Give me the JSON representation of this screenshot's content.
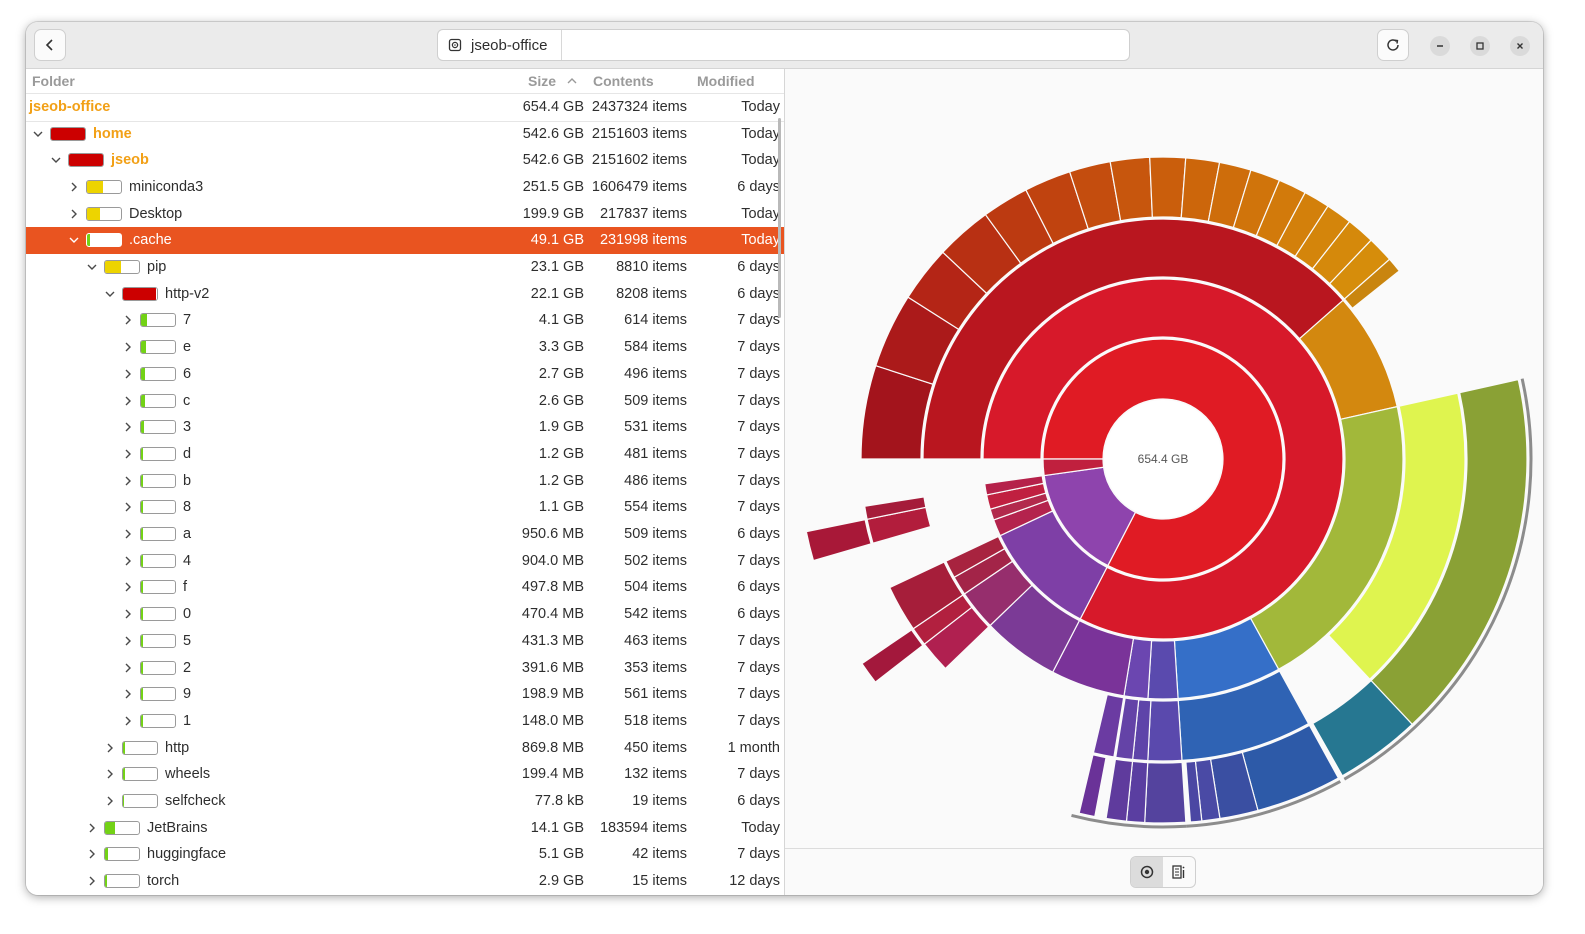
{
  "window": {
    "location_label": "jseob-office",
    "icons": {
      "back": "chevron-left-icon",
      "reload": "reload-icon",
      "minimize": "minimize-icon",
      "maximize": "maximize-icon",
      "close": "close-icon",
      "drive": "drive-icon"
    }
  },
  "columns": {
    "folder": "Folder",
    "size": "Size",
    "contents": "Contents",
    "modified": "Modified"
  },
  "root": {
    "name": "jseob-office",
    "size": "654.4 GB",
    "items": "2437324 items",
    "modified": "Today"
  },
  "rows": [
    {
      "name": "home",
      "size": "542.6 GB",
      "items": "2151603 items",
      "modified": "Today",
      "depth": 0,
      "expanded": true,
      "fill": 1.0,
      "color": "#cc0000",
      "highlight": true
    },
    {
      "name": "jseob",
      "size": "542.6 GB",
      "items": "2151602 items",
      "modified": "Today",
      "depth": 1,
      "expanded": true,
      "fill": 1.0,
      "color": "#cc0000",
      "highlight": true
    },
    {
      "name": "miniconda3",
      "size": "251.5 GB",
      "items": "1606479 items",
      "modified": "6 days",
      "depth": 2,
      "expanded": false,
      "fill": 0.46,
      "color": "#edd400"
    },
    {
      "name": "Desktop",
      "size": "199.9 GB",
      "items": "217837 items",
      "modified": "Today",
      "depth": 2,
      "expanded": false,
      "fill": 0.37,
      "color": "#edd400"
    },
    {
      "name": ".cache",
      "size": "49.1 GB",
      "items": "231998 items",
      "modified": "Today",
      "depth": 2,
      "expanded": true,
      "fill": 0.09,
      "color": "#73d216",
      "selected": true
    },
    {
      "name": "pip",
      "size": "23.1 GB",
      "items": "8810 items",
      "modified": "6 days",
      "depth": 3,
      "expanded": true,
      "fill": 0.47,
      "color": "#edd400"
    },
    {
      "name": "http-v2",
      "size": "22.1 GB",
      "items": "8208 items",
      "modified": "6 days",
      "depth": 4,
      "expanded": true,
      "fill": 0.96,
      "color": "#cc0000"
    },
    {
      "name": "7",
      "size": "4.1 GB",
      "items": "614 items",
      "modified": "7 days",
      "depth": 5,
      "expanded": false,
      "fill": 0.19,
      "color": "#73d216"
    },
    {
      "name": "e",
      "size": "3.3 GB",
      "items": "584 items",
      "modified": "7 days",
      "depth": 5,
      "expanded": false,
      "fill": 0.15,
      "color": "#73d216"
    },
    {
      "name": "6",
      "size": "2.7 GB",
      "items": "496 items",
      "modified": "7 days",
      "depth": 5,
      "expanded": false,
      "fill": 0.12,
      "color": "#73d216"
    },
    {
      "name": "c",
      "size": "2.6 GB",
      "items": "509 items",
      "modified": "7 days",
      "depth": 5,
      "expanded": false,
      "fill": 0.12,
      "color": "#73d216"
    },
    {
      "name": "3",
      "size": "1.9 GB",
      "items": "531 items",
      "modified": "7 days",
      "depth": 5,
      "expanded": false,
      "fill": 0.09,
      "color": "#73d216"
    },
    {
      "name": "d",
      "size": "1.2 GB",
      "items": "481 items",
      "modified": "7 days",
      "depth": 5,
      "expanded": false,
      "fill": 0.05,
      "color": "#73d216"
    },
    {
      "name": "b",
      "size": "1.2 GB",
      "items": "486 items",
      "modified": "7 days",
      "depth": 5,
      "expanded": false,
      "fill": 0.05,
      "color": "#73d216"
    },
    {
      "name": "8",
      "size": "1.1 GB",
      "items": "554 items",
      "modified": "7 days",
      "depth": 5,
      "expanded": false,
      "fill": 0.05,
      "color": "#73d216"
    },
    {
      "name": "a",
      "size": "950.6 MB",
      "items": "509 items",
      "modified": "6 days",
      "depth": 5,
      "expanded": false,
      "fill": 0.04,
      "color": "#73d216"
    },
    {
      "name": "4",
      "size": "904.0 MB",
      "items": "502 items",
      "modified": "7 days",
      "depth": 5,
      "expanded": false,
      "fill": 0.04,
      "color": "#73d216"
    },
    {
      "name": "f",
      "size": "497.8 MB",
      "items": "504 items",
      "modified": "6 days",
      "depth": 5,
      "expanded": false,
      "fill": 0.02,
      "color": "#73d216"
    },
    {
      "name": "0",
      "size": "470.4 MB",
      "items": "542 items",
      "modified": "6 days",
      "depth": 5,
      "expanded": false,
      "fill": 0.02,
      "color": "#73d216"
    },
    {
      "name": "5",
      "size": "431.3 MB",
      "items": "463 items",
      "modified": "7 days",
      "depth": 5,
      "expanded": false,
      "fill": 0.02,
      "color": "#73d216"
    },
    {
      "name": "2",
      "size": "391.6 MB",
      "items": "353 items",
      "modified": "7 days",
      "depth": 5,
      "expanded": false,
      "fill": 0.02,
      "color": "#73d216"
    },
    {
      "name": "9",
      "size": "198.9 MB",
      "items": "561 items",
      "modified": "7 days",
      "depth": 5,
      "expanded": false,
      "fill": 0.01,
      "color": "#73d216"
    },
    {
      "name": "1",
      "size": "148.0 MB",
      "items": "518 items",
      "modified": "7 days",
      "depth": 5,
      "expanded": false,
      "fill": 0.01,
      "color": "#73d216"
    },
    {
      "name": "http",
      "size": "869.8 MB",
      "items": "450 items",
      "modified": "1 month",
      "depth": 4,
      "expanded": false,
      "fill": 0.04,
      "color": "#73d216"
    },
    {
      "name": "wheels",
      "size": "199.4 MB",
      "items": "132 items",
      "modified": "7 days",
      "depth": 4,
      "expanded": false,
      "fill": 0.01,
      "color": "#73d216"
    },
    {
      "name": "selfcheck",
      "size": "77.8 kB",
      "items": "19 items",
      "modified": "6 days",
      "depth": 4,
      "expanded": false,
      "fill": 0.0,
      "color": "#73d216"
    },
    {
      "name": "JetBrains",
      "size": "14.1 GB",
      "items": "183594 items",
      "modified": "Today",
      "depth": 3,
      "expanded": false,
      "fill": 0.29,
      "color": "#73d216"
    },
    {
      "name": "huggingface",
      "size": "5.1 GB",
      "items": "42 items",
      "modified": "7 days",
      "depth": 3,
      "expanded": false,
      "fill": 0.1,
      "color": "#73d216"
    },
    {
      "name": "torch",
      "size": "2.9 GB",
      "items": "15 items",
      "modified": "12 days",
      "depth": 3,
      "expanded": false,
      "fill": 0.06,
      "color": "#73d216"
    }
  ],
  "chart_data": {
    "type": "sunburst",
    "center_label": "654.4 GB",
    "start_angle_deg": 180,
    "rings": [
      [
        {
          "start": 0,
          "end": 0.826,
          "color": "#e01b24"
        },
        {
          "start": 0.826,
          "end": 0.978,
          "color": "#8e44ad"
        },
        {
          "start": 0.978,
          "end": 1.0,
          "color": "#c0203e"
        }
      ],
      [
        {
          "start": 0,
          "end": 0.826,
          "color": "#d7192a"
        },
        {
          "start": 0.826,
          "end": 0.93,
          "color": "#7e3fa6"
        },
        {
          "start": 0.93,
          "end": 0.945,
          "color": "#b4234d"
        },
        {
          "start": 0.945,
          "end": 0.955,
          "color": "#b22a4c"
        },
        {
          "start": 0.955,
          "end": 0.968,
          "color": "#c02040"
        },
        {
          "start": 0.968,
          "end": 0.978,
          "color": "#b5214a"
        }
      ],
      [
        {
          "start": 0,
          "end": 0.385,
          "color": "#b9161f"
        },
        {
          "start": 0.385,
          "end": 0.465,
          "color": "#d3880f"
        },
        {
          "start": 0.465,
          "end": 0.67,
          "color": "#a2b83a"
        },
        {
          "start": 0.67,
          "end": 0.74,
          "color": "#356fc8"
        },
        {
          "start": 0.74,
          "end": 0.76,
          "color": "#5a4aae"
        },
        {
          "start": 0.76,
          "end": 0.776,
          "color": "#6b46b0"
        },
        {
          "start": 0.776,
          "end": 0.826,
          "color": "#7a3399"
        },
        {
          "start": 0.826,
          "end": 0.878,
          "color": "#7b3a96"
        },
        {
          "start": 0.878,
          "end": 0.905,
          "color": "#962e6d"
        },
        {
          "start": 0.905,
          "end": 0.918,
          "color": "#a32448"
        },
        {
          "start": 0.918,
          "end": 0.93,
          "color": "#a8233f"
        }
      ],
      [
        {
          "start": 0,
          "end": 0.05,
          "color": "#a3141c"
        },
        {
          "start": 0.05,
          "end": 0.09,
          "color": "#ab1a1a"
        },
        {
          "start": 0.09,
          "end": 0.12,
          "color": "#b42516"
        },
        {
          "start": 0.12,
          "end": 0.15,
          "color": "#b83013"
        },
        {
          "start": 0.15,
          "end": 0.175,
          "color": "#bc3a11"
        },
        {
          "start": 0.175,
          "end": 0.2,
          "color": "#c0430f"
        },
        {
          "start": 0.2,
          "end": 0.222,
          "color": "#c44d0e"
        },
        {
          "start": 0.222,
          "end": 0.243,
          "color": "#c7560d"
        },
        {
          "start": 0.243,
          "end": 0.262,
          "color": "#ca5e0c"
        },
        {
          "start": 0.262,
          "end": 0.28,
          "color": "#cc660b"
        },
        {
          "start": 0.28,
          "end": 0.297,
          "color": "#ce6d0b"
        },
        {
          "start": 0.297,
          "end": 0.313,
          "color": "#d0740b"
        },
        {
          "start": 0.313,
          "end": 0.328,
          "color": "#d27a0b"
        },
        {
          "start": 0.328,
          "end": 0.342,
          "color": "#d3800b"
        },
        {
          "start": 0.342,
          "end": 0.356,
          "color": "#d4850b"
        },
        {
          "start": 0.356,
          "end": 0.371,
          "color": "#d5890b"
        },
        {
          "start": 0.371,
          "end": 0.385,
          "color": "#d68d0b"
        },
        {
          "start": 0.385,
          "end": 0.393,
          "color": "#c9850f"
        },
        {
          "start": 0.465,
          "end": 0.63,
          "color": "#dff44f"
        },
        {
          "start": 0.67,
          "end": 0.74,
          "color": "#2f63b4"
        },
        {
          "start": 0.74,
          "end": 0.758,
          "color": "#5a49ad"
        },
        {
          "start": 0.758,
          "end": 0.766,
          "color": "#5e44a9"
        },
        {
          "start": 0.766,
          "end": 0.775,
          "color": "#6443a7"
        },
        {
          "start": 0.776,
          "end": 0.787,
          "color": "#6b3ba2"
        },
        {
          "start": 0.878,
          "end": 0.895,
          "color": "#b02050"
        },
        {
          "start": 0.895,
          "end": 0.905,
          "color": "#b2203f"
        },
        {
          "start": 0.905,
          "end": 0.93,
          "color": "#a61e3a"
        },
        {
          "start": 0.955,
          "end": 0.968,
          "color": "#b21d3c"
        },
        {
          "start": 0.968,
          "end": 0.975,
          "color": "#a51c3a"
        }
      ],
      [
        {
          "start": 0.465,
          "end": 0.63,
          "color": "#8aa135"
        },
        {
          "start": 0.63,
          "end": 0.668,
          "color": "#267791"
        },
        {
          "start": 0.67,
          "end": 0.708,
          "color": "#2d5aa8"
        },
        {
          "start": 0.708,
          "end": 0.725,
          "color": "#3a4fa2"
        },
        {
          "start": 0.725,
          "end": 0.733,
          "color": "#4a4aa5"
        },
        {
          "start": 0.733,
          "end": 0.738,
          "color": "#4b47a3"
        },
        {
          "start": 0.74,
          "end": 0.758,
          "color": "#54439e"
        },
        {
          "start": 0.758,
          "end": 0.766,
          "color": "#5a3ea1"
        },
        {
          "start": 0.766,
          "end": 0.775,
          "color": "#5f3b9d"
        },
        {
          "start": 0.78,
          "end": 0.787,
          "color": "#6a3298"
        },
        {
          "start": 0.895,
          "end": 0.905,
          "color": "#a3183c"
        },
        {
          "start": 0.955,
          "end": 0.968,
          "color": "#a81838"
        }
      ]
    ]
  }
}
